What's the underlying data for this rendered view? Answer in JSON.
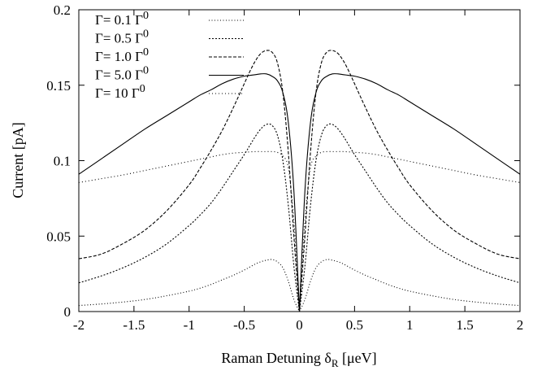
{
  "chart_data": {
    "type": "line",
    "title": "",
    "xlabel": {
      "main": "Raman Detuning δ",
      "sub": "R",
      "unit": " [μeV]"
    },
    "ylabel": "Current [pA]",
    "xlim": [
      -2,
      2
    ],
    "ylim": [
      0,
      0.2
    ],
    "x_ticks": [
      -2,
      -1.5,
      -1,
      -0.5,
      0,
      0.5,
      1,
      1.5,
      2
    ],
    "x_tick_labels": [
      "-2",
      "-1.5",
      "-1",
      "-0.5",
      "0",
      "0.5",
      "1",
      "1.5",
      "2"
    ],
    "y_ticks": [
      0,
      0.05,
      0.1,
      0.15,
      0.2
    ],
    "y_tick_labels": [
      "0",
      "0.05",
      "0.1",
      "0.15",
      "0.2"
    ],
    "grid": false,
    "legend_position": "top-left",
    "x": [
      0,
      0.05,
      0.1,
      0.15,
      0.2,
      0.25,
      0.3,
      0.35,
      0.4,
      0.45,
      0.5,
      0.6,
      0.7,
      0.8,
      0.9,
      1.0,
      1.2,
      1.4,
      1.6,
      1.8,
      2.0
    ],
    "symmetric_about_zero": true,
    "series": [
      {
        "name": "Γ= 0.1 Γ",
        "sup": "0",
        "dash": "1,2.5",
        "values": [
          0,
          0.008,
          0.02,
          0.029,
          0.033,
          0.0345,
          0.034,
          0.033,
          0.0315,
          0.0295,
          0.0275,
          0.024,
          0.021,
          0.018,
          0.0155,
          0.0135,
          0.0105,
          0.008,
          0.0063,
          0.005,
          0.004
        ]
      },
      {
        "name": "Γ= 0.5 Γ",
        "sup": "0",
        "dash": "2,2",
        "values": [
          0,
          0.03,
          0.07,
          0.1,
          0.117,
          0.1235,
          0.124,
          0.121,
          0.116,
          0.11,
          0.104,
          0.093,
          0.082,
          0.072,
          0.064,
          0.057,
          0.045,
          0.036,
          0.029,
          0.0235,
          0.019
        ]
      },
      {
        "name": "Γ= 1.0 Γ",
        "sup": "0",
        "dash": "4,2",
        "values": [
          0,
          0.05,
          0.105,
          0.145,
          0.165,
          0.172,
          0.173,
          0.171,
          0.166,
          0.159,
          0.151,
          0.135,
          0.12,
          0.107,
          0.095,
          0.084,
          0.067,
          0.054,
          0.045,
          0.038,
          0.035
        ]
      },
      {
        "name": "Γ= 5.0 Γ",
        "sup": "0",
        "dash": "",
        "values": [
          0,
          0.08,
          0.125,
          0.145,
          0.153,
          0.156,
          0.1575,
          0.1575,
          0.157,
          0.1565,
          0.156,
          0.154,
          0.151,
          0.147,
          0.1435,
          0.139,
          0.13,
          0.121,
          0.111,
          0.101,
          0.091
        ]
      },
      {
        "name": "Γ=  10 Γ",
        "sup": "0",
        "dash": "1,3",
        "values": [
          0,
          0.06,
          0.095,
          0.103,
          0.1055,
          0.106,
          0.106,
          0.106,
          0.106,
          0.1058,
          0.1055,
          0.105,
          0.104,
          0.1025,
          0.101,
          0.0995,
          0.0965,
          0.0935,
          0.0905,
          0.088,
          0.0855
        ]
      }
    ]
  }
}
